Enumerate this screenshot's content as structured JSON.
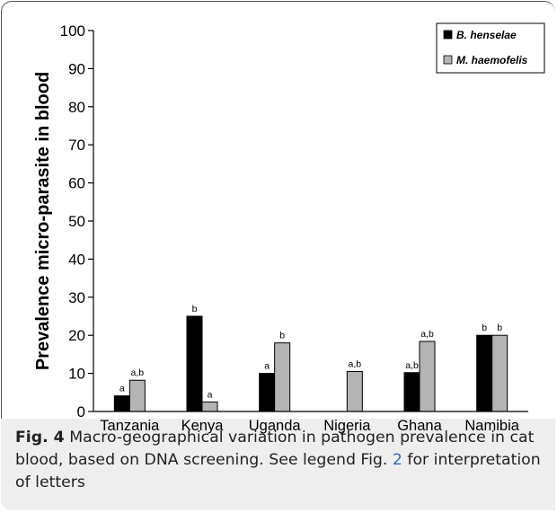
{
  "colors": {
    "henselae": "#000000",
    "haemofelis": "#b4b4b4",
    "caption_background": "#eeeeee",
    "caption_link": "#2f6db5"
  },
  "chart_data": {
    "type": "bar",
    "categories": [
      "Tanzania",
      "Kenya",
      "Uganda",
      "Nigeria",
      "Ghana",
      "Namibia"
    ],
    "series": [
      {
        "name": "B. henselae",
        "values": [
          4.1,
          25,
          10,
          0,
          10.2,
          20
        ],
        "letters": [
          "a",
          "b",
          "a",
          "",
          "a,b",
          "b"
        ]
      },
      {
        "name": "M. haemofelis",
        "values": [
          8.2,
          2.5,
          18,
          10.5,
          18.4,
          20
        ],
        "letters": [
          "a,b",
          "a",
          "b",
          "a,b",
          "a,b",
          "b"
        ]
      }
    ],
    "title": "",
    "xlabel": "",
    "ylabel": "Prevalence micro-parasite in blood",
    "ylim": [
      0,
      100
    ],
    "yticks": [
      0,
      10,
      20,
      30,
      40,
      50,
      60,
      70,
      80,
      90,
      100
    ],
    "grid": false,
    "legend_position": "top-right"
  },
  "caption": {
    "label": "Fig. 4",
    "text_before_ref": "Macro-geographical variation in pathogen prevalence in cat blood, based on DNA screening. See legend Fig.",
    "ref": "2",
    "text_after_ref": "for interpretation of letters"
  }
}
